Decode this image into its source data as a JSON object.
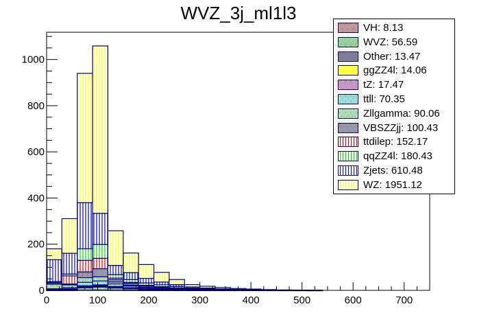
{
  "chart_data": {
    "type": "bar",
    "stacked": true,
    "title": "WVZ_3j_ml1l3",
    "xlabel": "",
    "ylabel": "",
    "xlim": [
      0,
      750
    ],
    "ylim": [
      0,
      1118
    ],
    "x_ticks": [
      0,
      100,
      200,
      300,
      400,
      500,
      600,
      700
    ],
    "y_ticks": [
      0,
      200,
      400,
      600,
      800,
      1000
    ],
    "bin_edges": [
      0,
      30,
      60,
      90,
      120,
      150,
      180,
      210,
      240,
      270,
      300,
      330,
      360,
      390,
      420,
      450,
      480,
      510,
      540
    ],
    "legend_position": "top-right",
    "series": [
      {
        "name": "VH",
        "label": "VH: 8.13",
        "color": "#cc3333",
        "pattern": "cross",
        "values": [
          0.3,
          0.5,
          1.5,
          1.8,
          1.2,
          0.8,
          0.5,
          0.4,
          0.3,
          0.2,
          0.2,
          0.1,
          0.1,
          0.1,
          0.05,
          0.03,
          0.02,
          0.02
        ]
      },
      {
        "name": "WVZ",
        "label": "WVZ: 56.59",
        "color": "#33cc33",
        "pattern": "cross",
        "values": [
          2,
          3,
          10,
          12,
          9,
          6,
          4,
          3,
          2,
          1.5,
          1.2,
          0.8,
          0.6,
          0.5,
          0.3,
          0.2,
          0.2,
          0.1
        ]
      },
      {
        "name": "Other",
        "label": "Other: 13.47",
        "color": "#0000aa",
        "pattern": "cross",
        "values": [
          0.5,
          1,
          2.5,
          3,
          2,
          1.5,
          1,
          0.6,
          0.4,
          0.3,
          0.2,
          0.2,
          0.1,
          0.1,
          0.03,
          0.02,
          0.01,
          0.01
        ]
      },
      {
        "name": "ggZZ4l",
        "label": "ggZZ4l: 14.06",
        "color": "#ffff44",
        "pattern": "solid",
        "values": [
          0.5,
          1,
          3,
          3.5,
          2,
          1.5,
          1,
          0.6,
          0.4,
          0.2,
          0.1,
          0.1,
          0.05,
          0.05,
          0.02,
          0.02,
          0.01,
          0.01
        ]
      },
      {
        "name": "tZ",
        "label": "tZ: 17.47",
        "color": "#cc33cc",
        "pattern": "cross",
        "values": [
          0.6,
          1.2,
          3,
          3.5,
          3,
          2,
          1.5,
          1,
          0.6,
          0.4,
          0.3,
          0.2,
          0.1,
          0.05,
          0.01,
          0.01,
          0,
          0
        ]
      },
      {
        "name": "ttll",
        "label": "ttll: 70.35",
        "color": "#33dddd",
        "pattern": "cross",
        "values": [
          3,
          5,
          15,
          17,
          11,
          7,
          4,
          3,
          2,
          1.2,
          0.8,
          0.5,
          0.4,
          0.2,
          0.1,
          0.1,
          0.05,
          0
        ]
      },
      {
        "name": "Zllgamma",
        "label": "Zllgamma: 90.06",
        "color": "#66cc66",
        "pattern": "cross",
        "values": [
          20,
          12,
          20,
          18,
          8,
          4,
          3,
          2,
          1.2,
          0.8,
          0.5,
          0.3,
          0.1,
          0.1,
          0.03,
          0.02,
          0.01,
          0
        ]
      },
      {
        "name": "VBSZZjj",
        "label": "VBSZZjj: 100.43",
        "color": "#3333aa",
        "pattern": "cross",
        "values": [
          2,
          4,
          25,
          35,
          10,
          8,
          5,
          4,
          3,
          1.5,
          1,
          0.8,
          0.5,
          0.3,
          0.2,
          0.1,
          0.03,
          0
        ]
      },
      {
        "name": "ttdilep",
        "label": "ttdilep: 152.17",
        "color": "#dd0000",
        "pattern": "vlines",
        "values": [
          5,
          35,
          50,
          45,
          7,
          4,
          2,
          1.5,
          1,
          0.8,
          0.5,
          0.2,
          0.1,
          0.05,
          0.02,
          0,
          0,
          0
        ]
      },
      {
        "name": "qqZZ4l",
        "label": "qqZZ4l: 180.43",
        "color": "#00dd00",
        "pattern": "vlines",
        "values": [
          4,
          8,
          50,
          60,
          15,
          12,
          10,
          8,
          6,
          3,
          2,
          1,
          0.8,
          0.4,
          0.1,
          0.1,
          0.03,
          0
        ]
      },
      {
        "name": "Zjets",
        "label": "Zjets: 610.48",
        "color": "#0000cc",
        "pattern": "vlines",
        "values": [
          95,
          90,
          200,
          135,
          40,
          30,
          20,
          12,
          8,
          5,
          3,
          2,
          1.2,
          0.8,
          0.5,
          0.3,
          0.1,
          0.08
        ]
      },
      {
        "name": "WZ",
        "label": "WZ: 1951.12",
        "color": "#ffff00",
        "pattern": "vlines",
        "values": [
          47,
          150,
          560,
          725,
          150,
          85,
          60,
          42,
          22,
          10,
          8,
          6,
          4,
          3,
          2,
          1,
          0.5,
          0.3
        ]
      }
    ]
  }
}
